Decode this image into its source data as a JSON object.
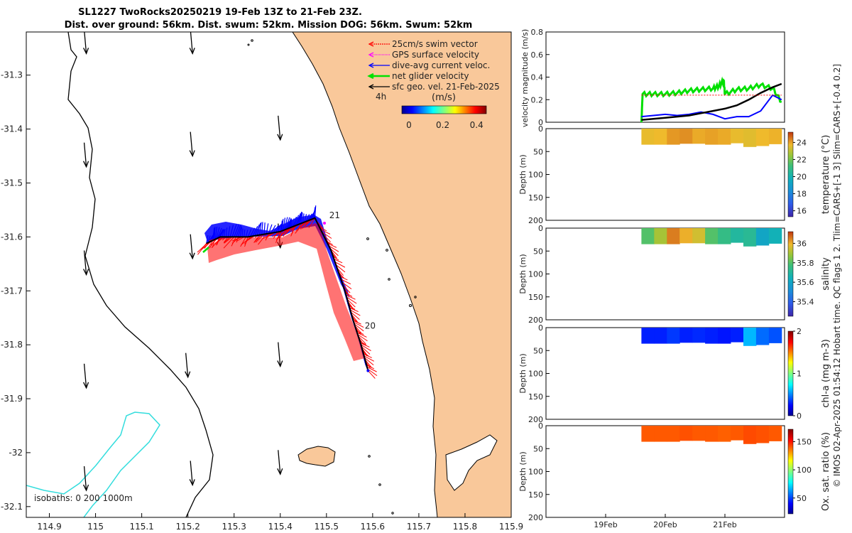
{
  "title_line1": "SL1227 TwoRocks20250219 19-Feb 13Z to 21-Feb 23Z.",
  "title_line2": "Dist. over ground: 56km. Dist. swum: 52km. Mission DOG: 56km. Swum: 52km",
  "side_note": "© IMOS 02-Apr-2025 01:54:12 Hobart time. QC flags 1  2. Tlim=CARS+[-1 3] Slim=CARS+[-0.4 0.2]",
  "colors": {
    "land": "#f9c89a",
    "swim": "#ff0000",
    "gps": "#ff00ff",
    "dive": "#0000ff",
    "net": "#00e000",
    "geo": "#000000",
    "isobath": "#33dddd"
  },
  "chart_data": [
    {
      "type": "map",
      "title": "SL1227 TwoRocks20250219 track",
      "xlim": [
        114.85,
        115.9
      ],
      "ylim": [
        -32.12,
        -31.22
      ],
      "xticks": [
        "114.9",
        "115",
        "115.1",
        "115.2",
        "115.3",
        "115.4",
        "115.5",
        "115.6",
        "115.7",
        "115.8",
        "115.9"
      ],
      "yticks": [
        "-31.3",
        "-31.4",
        "-31.5",
        "-31.6",
        "-31.7",
        "-31.8",
        "-31.9",
        "-32",
        "-32.1"
      ],
      "legend": [
        {
          "label": "25cm/s swim vector",
          "color": "#ff0000"
        },
        {
          "label": "GPS surface velocity",
          "color": "#ff00ff"
        },
        {
          "label": "dive-avg current veloc.",
          "color": "#0000ff"
        },
        {
          "label": "net glider velocity",
          "color": "#00e000"
        },
        {
          "label": "sfc geo. vel. 21-Feb-2025",
          "color": "#000000"
        }
      ],
      "legend_scale_label": "4h",
      "colorbar_label": "(m/s)",
      "colorbar_ticks": [
        "0",
        "0.2",
        "0.4"
      ],
      "day_labels": [
        {
          "label": "21",
          "lon": 115.506,
          "lat": -31.565
        },
        {
          "label": "20",
          "lon": 115.583,
          "lat": -31.77
        }
      ],
      "isobath_label": "isobaths: 0   200  1000m",
      "track": [
        {
          "lon": 115.59,
          "lat": -31.848
        },
        {
          "lon": 115.575,
          "lat": -31.8
        },
        {
          "lon": 115.558,
          "lat": -31.755
        },
        {
          "lon": 115.54,
          "lat": -31.7
        },
        {
          "lon": 115.51,
          "lat": -31.625
        },
        {
          "lon": 115.475,
          "lat": -31.565
        },
        {
          "lon": 115.43,
          "lat": -31.58
        },
        {
          "lon": 115.4,
          "lat": -31.59
        },
        {
          "lon": 115.33,
          "lat": -31.6
        },
        {
          "lon": 115.27,
          "lat": -31.6
        },
        {
          "lon": 115.24,
          "lat": -31.612
        }
      ],
      "geo_vectors": [
        {
          "lon": 114.98,
          "lat": -31.26
        },
        {
          "lon": 115.21,
          "lat": -31.26
        },
        {
          "lon": 114.98,
          "lat": -31.47
        },
        {
          "lon": 115.21,
          "lat": -31.45
        },
        {
          "lon": 115.4,
          "lat": -31.42
        },
        {
          "lon": 114.98,
          "lat": -31.67
        },
        {
          "lon": 115.21,
          "lat": -31.64
        },
        {
          "lon": 115.4,
          "lat": -31.62
        },
        {
          "lon": 114.98,
          "lat": -31.88
        },
        {
          "lon": 115.2,
          "lat": -31.86
        },
        {
          "lon": 115.4,
          "lat": -31.84
        },
        {
          "lon": 114.98,
          "lat": -32.07
        },
        {
          "lon": 115.21,
          "lat": -32.06
        },
        {
          "lon": 115.4,
          "lat": -32.04
        }
      ]
    },
    {
      "type": "line",
      "ylabel": "velocity magnitude (m/s)",
      "ylim": [
        0,
        0.8
      ],
      "yticks": [
        "0",
        "0.2",
        "0.4",
        "0.6",
        "0.8"
      ],
      "xlim_days": [
        18.0,
        22.0
      ],
      "xticks": [
        {
          "day": 19.0,
          "label": "19Feb"
        },
        {
          "day": 20.0,
          "label": "20Feb"
        },
        {
          "day": 21.0,
          "label": "21Feb"
        }
      ],
      "series": [
        {
          "name": "net glider velocity",
          "color": "#00e000",
          "x": [
            19.6,
            19.62,
            19.8,
            20.0,
            20.2,
            20.4,
            20.6,
            20.8,
            20.9,
            20.98,
            21.0,
            21.2,
            21.4,
            21.6,
            21.8,
            21.95
          ],
          "y": [
            0.0,
            0.25,
            0.25,
            0.25,
            0.26,
            0.28,
            0.29,
            0.3,
            0.32,
            0.37,
            0.25,
            0.29,
            0.3,
            0.33,
            0.3,
            0.18
          ]
        },
        {
          "name": "dive-avg current veloc.",
          "color": "#0000ff",
          "x": [
            19.6,
            19.8,
            20.0,
            20.2,
            20.4,
            20.6,
            20.8,
            21.0,
            21.2,
            21.4,
            21.6,
            21.8,
            21.95
          ],
          "y": [
            0.05,
            0.06,
            0.07,
            0.06,
            0.07,
            0.09,
            0.07,
            0.03,
            0.05,
            0.05,
            0.1,
            0.24,
            0.2
          ]
        },
        {
          "name": "sfc geo. vel.",
          "color": "#000000",
          "x": [
            19.6,
            19.8,
            20.0,
            20.2,
            20.4,
            20.6,
            20.8,
            21.0,
            21.2,
            21.4,
            21.6,
            21.8,
            21.95
          ],
          "y": [
            0.02,
            0.03,
            0.04,
            0.05,
            0.06,
            0.08,
            0.1,
            0.12,
            0.15,
            0.2,
            0.26,
            0.31,
            0.34
          ]
        },
        {
          "name": "swim (dotted)",
          "color": "#ff0000",
          "x": [
            19.6,
            20.0,
            20.5,
            21.0,
            21.5,
            21.95
          ],
          "y": [
            0.24,
            0.24,
            0.24,
            0.24,
            0.24,
            0.24
          ]
        }
      ]
    },
    {
      "type": "heatmap",
      "variable": "temperature",
      "cbar_label": "temperature (°C)",
      "ylabel": "Depth (m)",
      "ylim": [
        0,
        200
      ],
      "yticks": [
        "0",
        "50",
        "100",
        "150",
        "200"
      ],
      "cbar_ticks": [
        "16",
        "18",
        "20",
        "22",
        "24"
      ],
      "cbar_range": [
        15.3,
        25.2
      ],
      "day_range": [
        19.6,
        21.95
      ],
      "max_depth_profile": [
        35,
        35,
        35,
        33,
        33,
        35,
        35,
        32,
        40,
        38,
        34
      ],
      "value_profile": [
        23.6,
        23.7,
        24.1,
        24.2,
        23.9,
        24.0,
        23.9,
        23.6,
        23.5,
        23.7,
        23.8
      ]
    },
    {
      "type": "heatmap",
      "variable": "salinity",
      "cbar_label": "salinity",
      "ylabel": "Depth (m)",
      "ylim": [
        0,
        200
      ],
      "yticks": [
        "0",
        "50",
        "100",
        "150",
        "200"
      ],
      "cbar_ticks": [
        "35.4",
        "35.6",
        "35.8",
        "36"
      ],
      "cbar_range": [
        35.25,
        36.12
      ],
      "day_range": [
        19.6,
        21.95
      ],
      "max_depth_profile": [
        35,
        35,
        35,
        33,
        33,
        35,
        35,
        32,
        40,
        38,
        34
      ],
      "value_profile": [
        35.8,
        35.9,
        36.05,
        36.0,
        35.95,
        35.8,
        35.75,
        35.7,
        35.72,
        35.6,
        35.65
      ]
    },
    {
      "type": "heatmap",
      "variable": "chl-a",
      "cbar_label": "chl-a (mg m-3)",
      "ylabel": "Depth (m)",
      "ylim": [
        0,
        200
      ],
      "yticks": [
        "0",
        "50",
        "100",
        "150",
        "200"
      ],
      "cbar_ticks": [
        "0",
        "1",
        "2"
      ],
      "cbar_range": [
        0,
        2
      ],
      "day_range": [
        19.6,
        21.95
      ],
      "max_depth_profile": [
        35,
        35,
        35,
        33,
        33,
        35,
        35,
        32,
        40,
        38,
        34
      ],
      "value_profile": [
        0.3,
        0.3,
        0.35,
        0.3,
        0.32,
        0.3,
        0.28,
        0.3,
        0.6,
        0.45,
        0.4
      ]
    },
    {
      "type": "heatmap",
      "variable": "oxygen saturation",
      "cbar_label": "Ox. sat. ratio (%)",
      "ylabel": "Depth (m)",
      "ylim": [
        0,
        200
      ],
      "yticks": [
        "0",
        "50",
        "100",
        "150",
        "200"
      ],
      "cbar_ticks": [
        "50",
        "100",
        "150"
      ],
      "cbar_range": [
        22,
        172
      ],
      "day_range": [
        19.6,
        21.95
      ],
      "max_depth_profile": [
        35,
        35,
        35,
        33,
        33,
        35,
        35,
        32,
        40,
        38,
        34
      ],
      "value_profile": [
        140,
        140,
        140,
        141,
        140,
        140,
        139,
        140,
        142,
        141,
        140
      ]
    }
  ]
}
